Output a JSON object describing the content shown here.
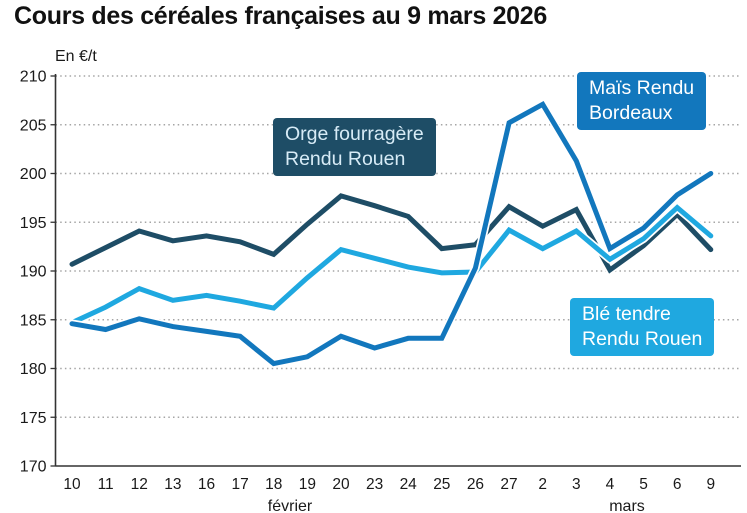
{
  "title": "Cours des céréales françaises au 9 mars 2026",
  "chart_data": {
    "type": "line",
    "title": "Cours des céréales françaises au 9 mars 2026",
    "unit_label": "En €/t",
    "ylabel": "En €/t",
    "xlabel": "",
    "ylim": [
      170,
      210
    ],
    "yticks": [
      210,
      205,
      200,
      195,
      190,
      185,
      180,
      175,
      170
    ],
    "grid": "horizontal dotted",
    "legend_style": "colored label boxes placed on plot",
    "categories": [
      "10",
      "11",
      "12",
      "13",
      "16",
      "17",
      "18",
      "19",
      "20",
      "23",
      "24",
      "25",
      "26",
      "27",
      "2",
      "3",
      "4",
      "5",
      "6",
      "9"
    ],
    "month_groups": [
      {
        "label": "février",
        "from_index": 0,
        "to_index": 13
      },
      {
        "label": "mars",
        "from_index": 14,
        "to_index": 19
      }
    ],
    "series": [
      {
        "name": "Orge fourragère Rendu Rouen",
        "label_lines": [
          "Orge fourragère",
          "Rendu Rouen"
        ],
        "color": "#1e4d66",
        "values": [
          190.7,
          192.4,
          194.1,
          193.1,
          193.6,
          193.0,
          191.7,
          194.8,
          197.7,
          196.7,
          195.6,
          192.3,
          192.7,
          196.6,
          194.6,
          196.3,
          190.1,
          192.6,
          195.8,
          192.2
        ]
      },
      {
        "name": "Blé tendre Rendu Rouen",
        "label_lines": [
          "Blé tendre",
          "Rendu Rouen"
        ],
        "color": "#1fa8e0",
        "values": [
          184.7,
          186.3,
          188.2,
          187.0,
          187.5,
          186.9,
          186.2,
          189.3,
          192.2,
          191.3,
          190.4,
          189.8,
          189.9,
          194.2,
          192.3,
          194.1,
          191.2,
          193.3,
          196.5,
          193.6
        ]
      },
      {
        "name": "Maïs Rendu Bordeaux",
        "label_lines": [
          "Maïs Rendu",
          "Bordeaux"
        ],
        "color": "#1277bd",
        "values": [
          184.6,
          184.0,
          185.1,
          184.3,
          183.8,
          183.3,
          180.5,
          181.2,
          183.3,
          182.1,
          183.1,
          183.1,
          190.3,
          205.2,
          207.1,
          201.3,
          192.3,
          194.4,
          197.8,
          200.0
        ]
      }
    ]
  }
}
